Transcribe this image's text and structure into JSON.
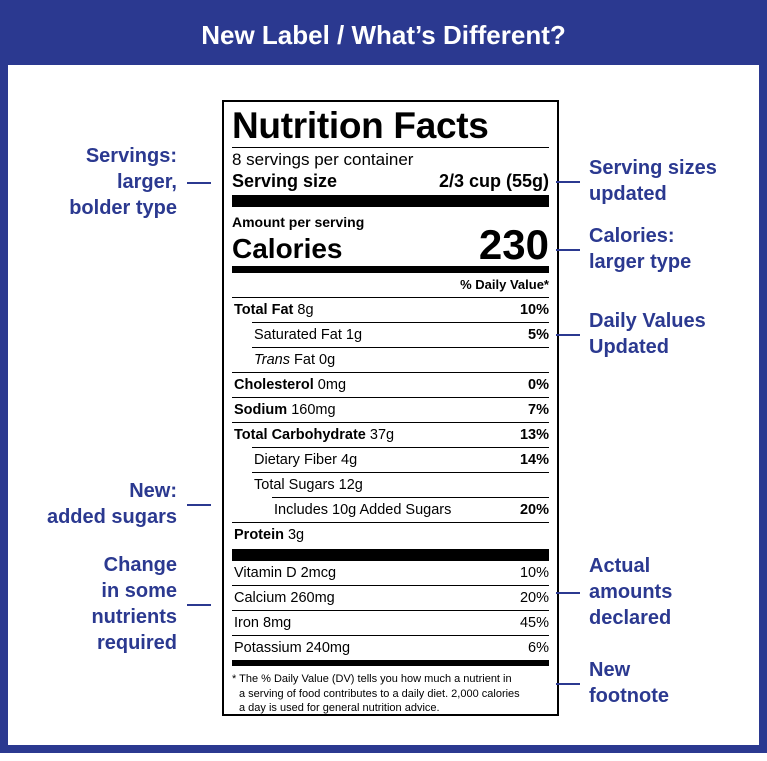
{
  "header": {
    "title": "New Label / What’s Different?"
  },
  "label": {
    "title": "Nutrition Facts",
    "servings": "8 servings per container",
    "serving_size": {
      "label": "Serving size",
      "value": "2/3 cup (55g)"
    },
    "amount_per_serving": "Amount per serving",
    "calories": {
      "label": "Calories",
      "value": 230
    },
    "dv_header": "% Daily Value*",
    "nutrients": [
      {
        "name": "Total Fat",
        "amount": "8g",
        "dv": "10%",
        "bold": true,
        "indent": 0
      },
      {
        "name": "Saturated Fat 1g",
        "dv": "5%",
        "bold": false,
        "indent": 1
      },
      {
        "prefix": "Trans",
        "name": "Fat 0g",
        "bold": false,
        "indent": 1
      },
      {
        "name": "Cholesterol",
        "amount": "0mg",
        "dv": "0%",
        "bold": true,
        "indent": 0
      },
      {
        "name": "Sodium",
        "amount": "160mg",
        "dv": "7%",
        "bold": true,
        "indent": 0
      },
      {
        "name": "Total Carbohydrate",
        "amount": "37g",
        "dv": "13%",
        "bold": true,
        "indent": 0
      },
      {
        "name": "Dietary Fiber 4g",
        "dv": "14%",
        "bold": false,
        "indent": 1
      },
      {
        "name": "Total Sugars 12g",
        "bold": false,
        "indent": 1
      },
      {
        "name": "Includes 10g Added Sugars",
        "dv": "20%",
        "bold": false,
        "indent": 2
      },
      {
        "name": "Protein",
        "amount": "3g",
        "bold": true,
        "indent": 0
      }
    ],
    "vitamins": [
      {
        "name": "Vitamin D 2mcg",
        "dv": "10%"
      },
      {
        "name": "Calcium 260mg",
        "dv": "20%"
      },
      {
        "name": "Iron 8mg",
        "dv": "45%"
      },
      {
        "name": "Potassium 240mg",
        "dv": "6%"
      }
    ],
    "footnote": [
      "* The % Daily Value (DV) tells you how much a nutrient in",
      "a serving of food contributes to a daily diet. 2,000 calories",
      "a day is used for general nutrition advice."
    ]
  },
  "annotations": {
    "left": [
      {
        "lines": [
          "Servings:",
          "larger,",
          "bolder type"
        ]
      },
      {
        "lines": [
          "New:",
          "added sugars"
        ]
      },
      {
        "lines": [
          "Change",
          "in some",
          "nutrients",
          "required"
        ]
      }
    ],
    "right": [
      {
        "lines": [
          "Serving sizes",
          "updated"
        ]
      },
      {
        "lines": [
          "Calories:",
          "larger type"
        ]
      },
      {
        "lines": [
          "Daily Values",
          "Updated"
        ]
      },
      {
        "lines": [
          "Actual",
          "amounts",
          "declared"
        ]
      },
      {
        "lines": [
          "New",
          "footnote"
        ]
      }
    ]
  }
}
